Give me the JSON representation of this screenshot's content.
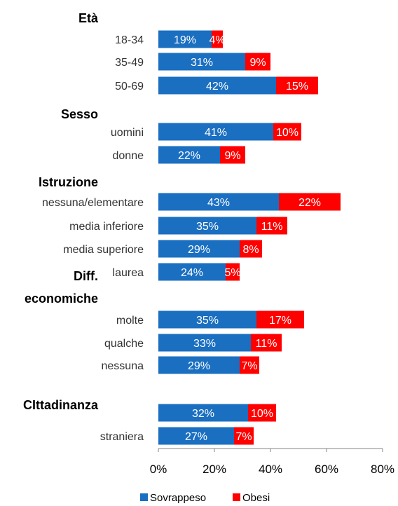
{
  "chart_data": {
    "type": "bar",
    "stacked": true,
    "orientation": "horizontal",
    "xlim": [
      0,
      80
    ],
    "x_ticks": [
      "0%",
      "20%",
      "40%",
      "60%",
      "80%"
    ],
    "grid": false,
    "legend_position": "bottom",
    "colors": {
      "sovrappeso": "#1a6fc1",
      "obesi": "#ff0000"
    },
    "series": [
      {
        "name": "Sovrappeso",
        "color": "#1a6fc1"
      },
      {
        "name": "Obesi",
        "color": "#ff0000"
      }
    ],
    "groups": [
      {
        "label": "Età",
        "rows": [
          {
            "category": "18-34",
            "values": [
              19,
              4
            ],
            "labels": [
              "19%",
              "4%"
            ]
          },
          {
            "category": "35-49",
            "values": [
              31,
              9
            ],
            "labels": [
              "31%",
              "9%"
            ]
          },
          {
            "category": "50-69",
            "values": [
              42,
              15
            ],
            "labels": [
              "42%",
              "15%"
            ]
          }
        ]
      },
      {
        "label": "Sesso",
        "rows": [
          {
            "category": "uomini",
            "values": [
              41,
              10
            ],
            "labels": [
              "41%",
              "10%"
            ]
          },
          {
            "category": "donne",
            "values": [
              22,
              9
            ],
            "labels": [
              "22%",
              "9%"
            ]
          }
        ]
      },
      {
        "label": "Istruzione",
        "rows": [
          {
            "category": "nessuna/elementare",
            "values": [
              43,
              22
            ],
            "labels": [
              "43%",
              "22%"
            ]
          },
          {
            "category": "media inferiore",
            "values": [
              35,
              11
            ],
            "labels": [
              "35%",
              "11%"
            ]
          },
          {
            "category": "media superiore",
            "values": [
              29,
              8
            ],
            "labels": [
              "29%",
              "8%"
            ]
          },
          {
            "category": "laurea",
            "values": [
              24,
              5
            ],
            "labels": [
              "24%",
              "5%"
            ]
          }
        ]
      },
      {
        "label": "Diff. economiche",
        "label_lines": [
          "Diff.",
          "economiche"
        ],
        "rows": [
          {
            "category": "molte",
            "values": [
              35,
              17
            ],
            "labels": [
              "35%",
              "17%"
            ]
          },
          {
            "category": "qualche",
            "values": [
              33,
              11
            ],
            "labels": [
              "33%",
              "11%"
            ]
          },
          {
            "category": "nessuna",
            "values": [
              29,
              7
            ],
            "labels": [
              "29%",
              "7%"
            ]
          }
        ]
      },
      {
        "label": "CIttadinanza",
        "rows": [
          {
            "category": "",
            "values": [
              32,
              10
            ],
            "labels": [
              "32%",
              "10%"
            ]
          },
          {
            "category": "straniera",
            "values": [
              27,
              7
            ],
            "labels": [
              "27%",
              "7%"
            ]
          }
        ]
      }
    ]
  }
}
